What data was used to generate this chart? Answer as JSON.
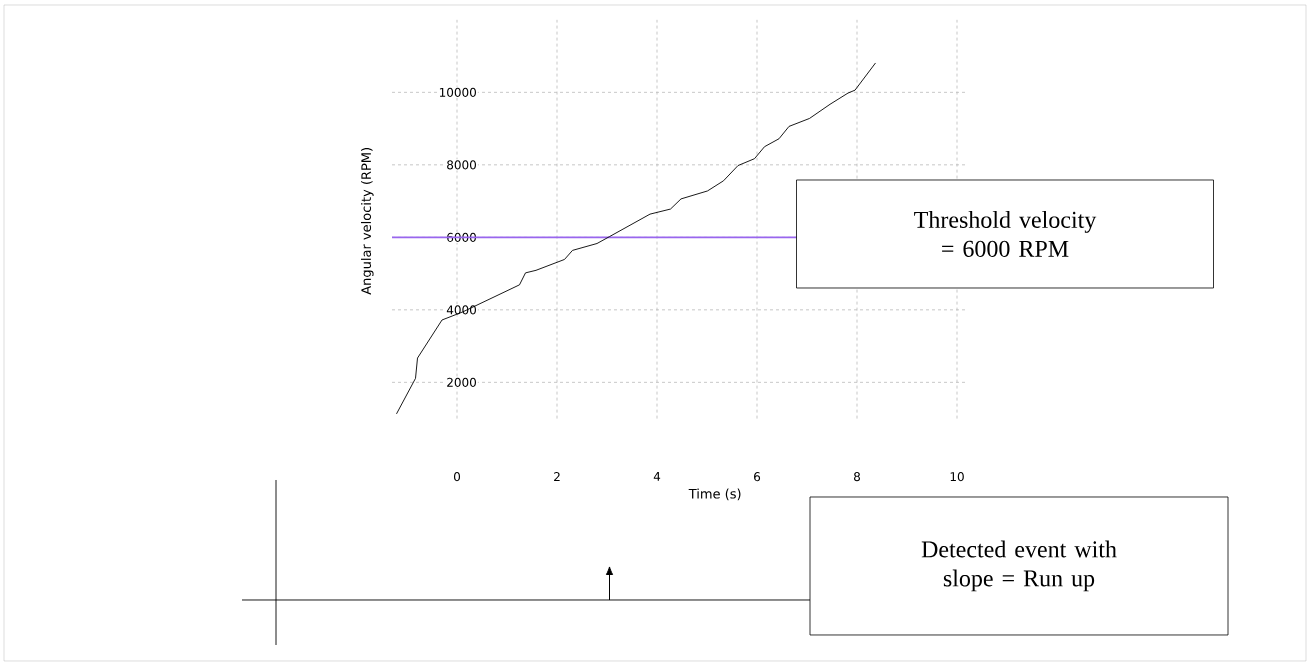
{
  "chart_data": {
    "type": "line",
    "xlabel": "Time (s)",
    "ylabel": "Angular velocity (RPM)",
    "x": [
      -1.21,
      -0.83,
      -0.79,
      -0.3,
      0.11,
      1.25,
      1.37,
      1.58,
      2.15,
      2.31,
      2.8,
      3.05,
      3.86,
      4.27,
      4.48,
      5.01,
      5.33,
      5.62,
      5.95,
      6.15,
      6.44,
      6.64,
      7.05,
      7.46,
      7.82,
      7.96,
      8.37
    ],
    "values": [
      1130,
      2110,
      2670,
      3720,
      3940,
      4690,
      5020,
      5090,
      5390,
      5640,
      5830,
      6020,
      6640,
      6780,
      7060,
      7280,
      7560,
      7980,
      8170,
      8500,
      8720,
      9060,
      9280,
      9670,
      9980,
      10060,
      10810
    ],
    "color": "#000000",
    "xlim": [
      -1.3,
      10.2
    ],
    "ylim": [
      1000,
      12000
    ],
    "xticks": [
      0,
      2,
      4,
      6,
      8,
      10
    ],
    "yticks": [
      2000,
      4000,
      6000,
      8000,
      10000
    ],
    "grid": true,
    "ref_lines": [
      {
        "axis": "y",
        "value": 6000,
        "label": "Threshold velocity = 6000 RPM",
        "color": "#9966ee"
      }
    ],
    "annotations": [
      "Detected event with slope = Run up"
    ]
  }
}
